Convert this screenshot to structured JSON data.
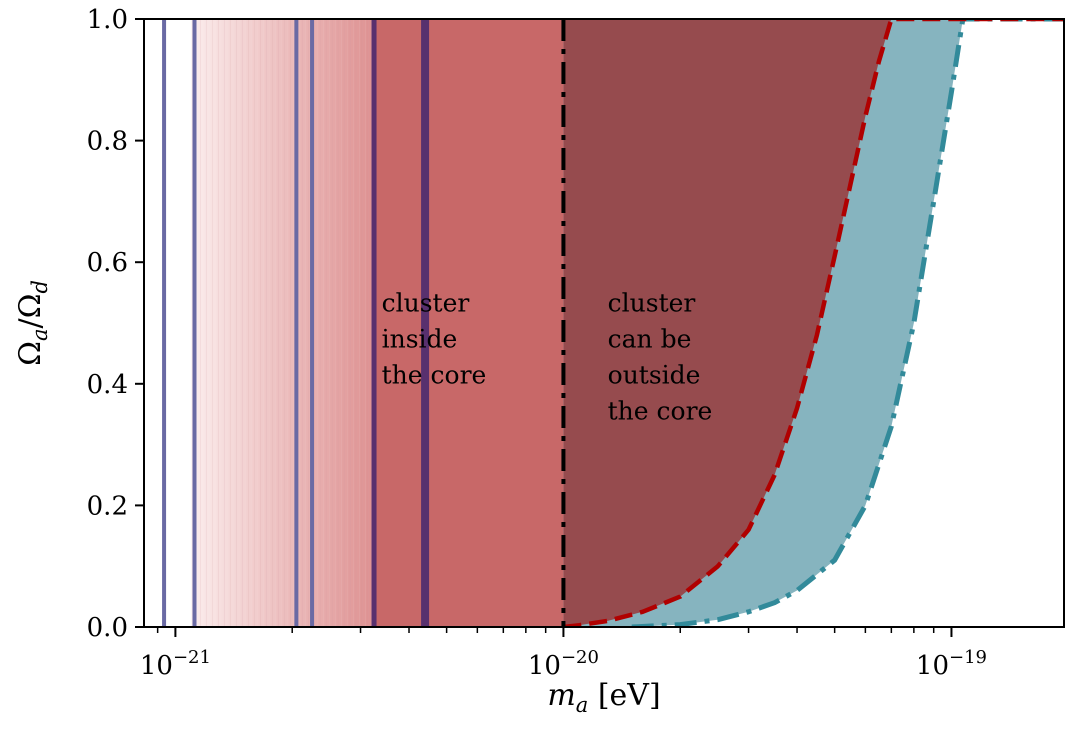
{
  "chart_data": {
    "type": "area",
    "x_scale": "log",
    "xlim": [
      8.3e-22,
      1.95e-19
    ],
    "ylim": [
      0.0,
      1.0
    ],
    "x_ticks": [
      {
        "value": 1e-21,
        "base": "10",
        "exp": "−21"
      },
      {
        "value": 1e-20,
        "base": "10",
        "exp": "−20"
      },
      {
        "value": 1e-19,
        "base": "10",
        "exp": "−19"
      }
    ],
    "y_ticks": [
      0.0,
      0.2,
      0.4,
      0.6,
      0.8,
      1.0
    ],
    "y_tick_labels": [
      "0.0",
      "0.2",
      "0.4",
      "0.6",
      "0.8",
      "1.0"
    ],
    "xlabel": {
      "symbol": "m",
      "sub": "a",
      "unit": "[eV]"
    },
    "ylabel": {
      "num": "Ω",
      "num_sub": "a",
      "sep": "/",
      "den": "Ω",
      "den_sub": "d"
    },
    "grid": false,
    "legend": "none",
    "gradient_region": {
      "x_start": 1.1e-21,
      "x_end": 3.2e-21,
      "color_start": "#fbecec",
      "color_end": "#df9494"
    },
    "solid_region": {
      "x_start": 3.2e-21,
      "x_end": 1e-20,
      "color": "#c86868"
    },
    "red_curve": {
      "color": "#b00000",
      "fill": "#964b4e",
      "x": [
        1e-20,
        1.1e-20,
        1.3e-20,
        1.6e-20,
        2e-20,
        2.5e-20,
        3e-20,
        3.5e-20,
        4e-20,
        4.5e-20,
        5e-20,
        5.5e-20,
        6e-20,
        6.5e-20,
        7e-20,
        1.95e-19
      ],
      "y": [
        0.0,
        0.003,
        0.01,
        0.025,
        0.05,
        0.1,
        0.16,
        0.25,
        0.36,
        0.48,
        0.61,
        0.73,
        0.84,
        0.93,
        1.0,
        1.0
      ]
    },
    "teal_curve": {
      "color": "#328a9a",
      "fill": "#86b4bf",
      "x": [
        1.5e-20,
        2e-20,
        2.5e-20,
        3e-20,
        3.5e-20,
        4e-20,
        5e-20,
        6e-20,
        7e-20,
        8e-20,
        9e-20,
        1e-19,
        1.07e-19,
        1.95e-19
      ],
      "y": [
        0.0,
        0.004,
        0.012,
        0.025,
        0.04,
        0.06,
        0.11,
        0.2,
        0.33,
        0.5,
        0.7,
        0.88,
        1.0,
        1.0
      ]
    },
    "vertical_lines": [
      {
        "x": 9.35e-22,
        "color": "#6a6aa4",
        "width": 4,
        "style": "solid"
      },
      {
        "x": 1.12e-21,
        "color": "#6a6aa4",
        "width": 4,
        "style": "solid"
      },
      {
        "x": 2.05e-21,
        "color": "#6a6aa4",
        "width": 4,
        "style": "solid"
      },
      {
        "x": 2.25e-21,
        "color": "#6a6aa4",
        "width": 4,
        "style": "solid"
      },
      {
        "x": 3.25e-21,
        "color": "#58306e",
        "width": 5,
        "style": "solid"
      },
      {
        "x": 4.4e-21,
        "color": "#58306e",
        "width": 8,
        "style": "solid"
      },
      {
        "x": 1e-20,
        "color": "#000000",
        "width": 4,
        "style": "dashdot"
      }
    ],
    "annotations": [
      {
        "id": "inside",
        "lines": [
          "cluster",
          "inside",
          "the core"
        ],
        "x": 3.4e-21,
        "y_top": 0.535
      },
      {
        "id": "outside",
        "lines": [
          "cluster",
          "can be",
          "outside",
          "the core"
        ],
        "x": 1.3e-20,
        "y_top": 0.535
      }
    ]
  }
}
